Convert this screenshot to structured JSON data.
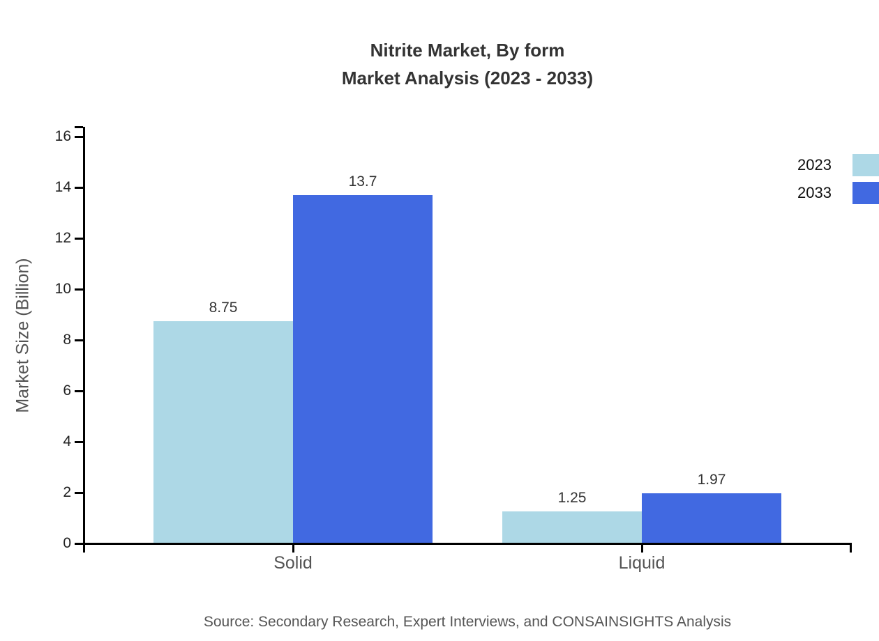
{
  "chart_data": {
    "type": "bar",
    "title": "Nitrite Market, By form",
    "subtitle": "Market Analysis (2023 - 2033)",
    "categories": [
      "Solid",
      "Liquid"
    ],
    "series": [
      {
        "name": "2023",
        "color": "#ADD8E6",
        "values": [
          8.75,
          1.25
        ]
      },
      {
        "name": "2033",
        "color": "#4169E1",
        "values": [
          13.7,
          1.97
        ]
      }
    ],
    "bar_value_labels": [
      [
        "8.75",
        "1.25"
      ],
      [
        "13.7",
        "1.97"
      ]
    ],
    "xlabel": "",
    "ylabel": "Market Size (Billion)",
    "ylim": [
      0,
      16
    ],
    "yticks": [
      0,
      2,
      4,
      6,
      8,
      10,
      12,
      14,
      16
    ],
    "grid": false,
    "legend_position": "top-right",
    "axis_color": "#000000",
    "text_colors": {
      "title": "#333333",
      "ticks": "#222222",
      "category": "#555555",
      "value_labels": "#333333",
      "legend": "#111111",
      "source": "#555555"
    }
  },
  "source_note": "Source: Secondary Research, Expert Interviews, and CONSAINSIGHTS Analysis"
}
